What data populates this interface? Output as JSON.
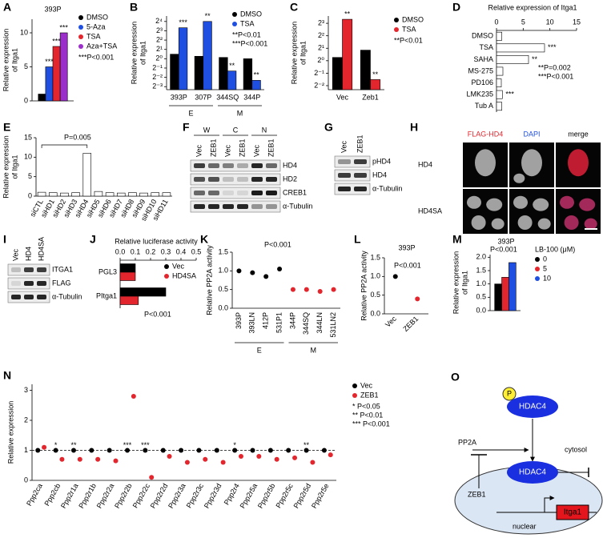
{
  "chart_data": [
    {
      "label": "A",
      "type": "bar",
      "title": "393P",
      "ylabel": [
        "Relative expression",
        "of Itga1"
      ],
      "categories": [
        null
      ],
      "series": [
        {
          "name": "DMSO",
          "color": "#000000",
          "values": [
            1
          ]
        },
        {
          "name": "5-Aza",
          "color": "#1f4fe0",
          "values": [
            5
          ],
          "significance": [
            "***"
          ]
        },
        {
          "name": "TSA",
          "color": "#e3262d",
          "values": [
            8
          ],
          "significance": [
            "***"
          ]
        },
        {
          "name": "Aza+TSA",
          "color": "#9b2fc9",
          "values": [
            10
          ],
          "significance": [
            "***"
          ]
        }
      ],
      "ylim": [
        0,
        12
      ],
      "yticks": [
        0,
        5,
        10
      ],
      "annotations": [
        "***P<0.001"
      ]
    },
    {
      "label": "B",
      "type": "bar",
      "ylabel": [
        "Relative expression",
        "of Itga1"
      ],
      "log_scale": true,
      "categories": [
        "393P",
        "307P",
        "344SQ",
        "344P"
      ],
      "series": [
        {
          "name": "DMSO",
          "color": "#000000",
          "values": [
            1.4,
            1.2,
            1.1,
            1.0
          ]
        },
        {
          "name": "TSA",
          "color": "#1f4fe0",
          "values": [
            10,
            16,
            0.4,
            0.2
          ],
          "significance": [
            "***",
            "**",
            "**",
            "**"
          ]
        }
      ],
      "groups": [
        {
          "label": "E",
          "categories": [
            "393P",
            "307P"
          ]
        },
        {
          "label": "M",
          "categories": [
            "344SQ",
            "344P"
          ]
        }
      ],
      "ylim": [
        0.1,
        24
      ],
      "yticks": [
        {
          "value": 0.125,
          "label": "2⁻³"
        },
        {
          "value": 0.25,
          "label": "2⁻²"
        },
        {
          "value": 0.5,
          "label": "2⁻¹"
        },
        {
          "value": 1,
          "label": "2⁰"
        },
        {
          "value": 2,
          "label": "2¹"
        },
        {
          "value": 4,
          "label": "2²"
        },
        {
          "value": 8,
          "label": "2³"
        },
        {
          "value": 16,
          "label": "2⁴"
        }
      ],
      "annotations": [
        "**P<0.01",
        "***P<0.001"
      ]
    },
    {
      "label": "C",
      "type": "bar",
      "ylabel": [
        "Relative expression",
        "of Itga1"
      ],
      "log_scale": true,
      "categories": [
        "Vec",
        "Zeb1"
      ],
      "series": [
        {
          "name": "DMSO",
          "color": "#000000",
          "values": [
            1.2,
            1.8
          ]
        },
        {
          "name": "TSA",
          "color": "#e3262d",
          "values": [
            10,
            0.35
          ],
          "significance": [
            "**",
            "**"
          ]
        }
      ],
      "ylim": [
        0.2,
        12
      ],
      "yticks": [
        {
          "value": 0.25,
          "label": "2⁻²"
        },
        {
          "value": 0.5,
          "label": "2⁻¹"
        },
        {
          "value": 1,
          "label": "2⁰"
        },
        {
          "value": 2,
          "label": "2¹"
        },
        {
          "value": 4,
          "label": "2²"
        },
        {
          "value": 8,
          "label": "2³"
        }
      ],
      "annotations": [
        "**P<0.01"
      ]
    },
    {
      "label": "D",
      "type": "bar",
      "orientation": "horizontal",
      "title": "Relative expression of Itga1",
      "categories": [
        "DMSO",
        "TSA",
        "SAHA",
        "MS-275",
        "PD106",
        "LMK235",
        "Tub A"
      ],
      "values": [
        1,
        9,
        6,
        1.2,
        0.9,
        1.1,
        1.0
      ],
      "color": "#ffffff",
      "significance": [
        null,
        "***",
        "**",
        null,
        null,
        "***",
        null
      ],
      "xlim": [
        0,
        15
      ],
      "xticks": [
        0,
        5,
        10,
        15
      ],
      "annotations": [
        "**P=0.002",
        "***P<0.001"
      ]
    },
    {
      "label": "E",
      "type": "bar",
      "ylabel": [
        "Relative expression",
        "of Itga1"
      ],
      "categories": [
        "siCTL",
        "siHD1",
        "siHD2",
        "siHD3",
        "siHD4",
        "siHD5",
        "siHD6",
        "siHD7",
        "siHD8",
        "siHD9",
        "siHD10",
        "siHD11"
      ],
      "values": [
        1,
        0.9,
        0.8,
        0.9,
        11,
        1.2,
        0.9,
        0.8,
        0.9,
        0.8,
        0.9,
        0.9
      ],
      "color": "#ffffff",
      "ylim": [
        0,
        15
      ],
      "yticks": [
        0,
        5,
        10,
        15
      ],
      "annotations": [
        "P=0.005"
      ]
    },
    {
      "label": "J",
      "type": "bar",
      "orientation": "horizontal",
      "title": "Relative luciferase activity",
      "categories": [
        "PGL3",
        "PItga1"
      ],
      "series": [
        {
          "name": "Vec",
          "color": "#000000",
          "values": [
            0.1,
            0.3
          ]
        },
        {
          "name": "HD4SA",
          "color": "#e3262d",
          "values": [
            0.1,
            0.12
          ]
        }
      ],
      "xlim": [
        0,
        0.5
      ],
      "xticks": [
        {
          "value": 0,
          "label": "0.0"
        },
        0.1,
        0.2,
        0.3,
        0.4,
        0.5
      ],
      "annotations": [
        "P<0.001"
      ]
    },
    {
      "label": "K",
      "type": "dot",
      "ylabel": "Relative PP2A activity",
      "categories": [
        "393P",
        "393LN",
        "412P",
        "531P1",
        "344P",
        "344SQ",
        "344LN",
        "531LN2"
      ],
      "values": [
        1.0,
        0.95,
        0.85,
        1.05,
        0.5,
        0.5,
        0.45,
        0.5
      ],
      "colors": [
        "#000000",
        "#000000",
        "#000000",
        "#000000",
        "#e3262d",
        "#e3262d",
        "#e3262d",
        "#e3262d"
      ],
      "groups": [
        {
          "label": "E",
          "categories": [
            "393P",
            "531P1"
          ]
        },
        {
          "label": "M",
          "categories": [
            "344P",
            "531LN2"
          ]
        }
      ],
      "ylim": [
        0,
        1.5
      ],
      "yticks": [
        {
          "value": 0,
          "label": "0.0"
        },
        0.5,
        {
          "value": 1,
          "label": "1.0"
        },
        1.5
      ],
      "annotations": [
        "P<0.001"
      ]
    },
    {
      "label": "L",
      "type": "dot",
      "title": "393P",
      "ylabel": "Relative PP2A activity",
      "categories": [
        "Vec",
        "ZEB1"
      ],
      "values": [
        1.0,
        0.4
      ],
      "colors": [
        "#000000",
        "#e3262d"
      ],
      "ylim": [
        0,
        1.5
      ],
      "yticks": [
        {
          "value": 0,
          "label": "0.0"
        },
        0.5,
        {
          "value": 1,
          "label": "1.0"
        },
        1.5
      ],
      "annotations": [
        "P<0.001"
      ]
    },
    {
      "label": "M",
      "type": "bar",
      "title": "393P",
      "ylabel": [
        "Relative expression",
        "of Itga1"
      ],
      "legend_title": "LB-100 (μM)",
      "categories": [
        null
      ],
      "series": [
        {
          "name": "0",
          "color": "#000000",
          "values": [
            1.0
          ]
        },
        {
          "name": "5",
          "color": "#e3262d",
          "values": [
            1.25
          ]
        },
        {
          "name": "10",
          "color": "#1f4fe0",
          "values": [
            1.8
          ]
        }
      ],
      "ylim": [
        0,
        2.1
      ],
      "yticks": [
        {
          "value": 0,
          "label": "0.0"
        },
        0.5,
        {
          "value": 1,
          "label": "1.0"
        },
        1.5,
        {
          "value": 2,
          "label": "2.0"
        }
      ],
      "annotations": [
        "P<0.001"
      ]
    },
    {
      "label": "N",
      "type": "dot",
      "ylabel": "Relative expression",
      "refline": 1,
      "categories": [
        "Ppp2ca",
        "Ppp2cb",
        "Ppp2r1a",
        "Ppp2r1b",
        "Ppp2r2a",
        "Ppp2r2b",
        "Ppp2r2c",
        "Ppp2r2d",
        "Ppp2r3a",
        "Ppp2r3c",
        "Ppp2r3d",
        "Ppp2r4",
        "Ppp2r5a",
        "Ppp2r5b",
        "Ppp2r5c",
        "Ppp2r5d",
        "Ppp2r5e"
      ],
      "series": [
        {
          "name": "Vec",
          "color": "#000000",
          "values": [
            1,
            1,
            1,
            1,
            1,
            1,
            1,
            1,
            1,
            1,
            1,
            1,
            1,
            1,
            1,
            1,
            1
          ],
          "significance": [
            null,
            "*",
            "**",
            null,
            null,
            "***",
            "***",
            null,
            null,
            null,
            null,
            "*",
            null,
            null,
            null,
            "**",
            null
          ]
        },
        {
          "name": "ZEB1",
          "color": "#e3262d",
          "values": [
            1.1,
            0.7,
            0.7,
            0.7,
            0.65,
            2.8,
            0.1,
            0.8,
            0.6,
            0.7,
            0.6,
            0.8,
            0.8,
            0.7,
            0.75,
            0.6,
            0.85
          ]
        }
      ],
      "ylim": [
        0,
        3.2
      ],
      "yticks": [
        0,
        1,
        2,
        3
      ],
      "annotations": [
        "* P<0.05",
        "** P<0.01",
        "*** P<0.001"
      ]
    }
  ],
  "blots": [
    {
      "label": "F",
      "groups": [
        "W",
        "C",
        "N"
      ],
      "lanes": [
        "Vec",
        "ZEB1",
        "Vec",
        "ZEB1",
        "Vec",
        "ZEB1"
      ],
      "rows": [
        "HD4",
        "HD2",
        "CREB1",
        "α-Tubulin"
      ]
    },
    {
      "label": "G",
      "lanes": [
        "Vec",
        "ZEB1"
      ],
      "rows": [
        "pHD4",
        "HD4",
        "α-Tubulin"
      ]
    },
    {
      "label": "I",
      "lanes": [
        "Vec",
        "HD4",
        "HD4SA"
      ],
      "rows": [
        "ITGA1",
        "FLAG",
        "α-Tubulin"
      ]
    }
  ],
  "images": {
    "label": "H",
    "columns": [
      "FLAG-HD4",
      "DAPI",
      "merge"
    ],
    "rows": [
      "HD4",
      "HD4SA"
    ]
  },
  "diagram": {
    "label": "O",
    "phospho": "P",
    "hdac4_top": "HDAC4",
    "pp2a": "PP2A",
    "cytosol": "cytosol",
    "hdac4_nuclear": "HDAC4",
    "zeb1": "ZEB1",
    "itga1": "Itga1",
    "nuclear": "nuclear"
  }
}
